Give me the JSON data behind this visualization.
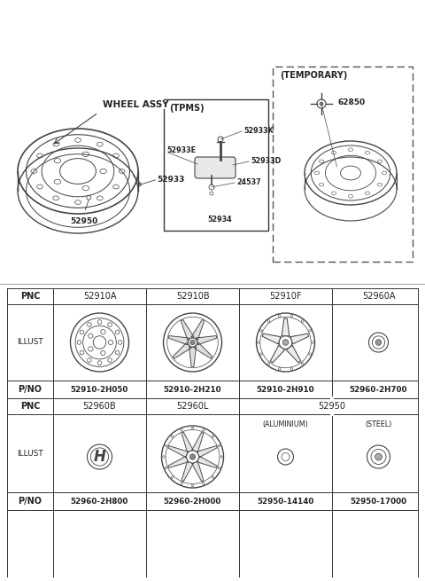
{
  "bg_color": "#ffffff",
  "line_color": "#444444",
  "text_color": "#222222",
  "diagram": {
    "wheel_assy_label": "WHEEL ASSY",
    "parts_left": [
      "52933",
      "52950"
    ],
    "tpms_label": "(TPMS)",
    "tpms_parts": [
      "52933K",
      "52933E",
      "52933D",
      "24537",
      "52934"
    ],
    "temp_label": "(TEMPORARY)",
    "temp_parts": [
      "62850"
    ]
  },
  "table": {
    "row0_headers": [
      "PNC",
      "52910A",
      "52910B",
      "52910F",
      "52960A"
    ],
    "row1_label": "ILLUST",
    "row2_label": "P/NO",
    "row2_values": [
      "52910-2H050",
      "52910-2H210",
      "52910-2H910",
      "52960-2H700"
    ],
    "row3_headers": [
      "PNC",
      "52960B",
      "52960L",
      "52950"
    ],
    "row4_label": "ILLUST",
    "row4_sub": [
      "",
      "",
      "(ALUMINIUM)",
      "(STEEL)"
    ],
    "row5_label": "P/NO",
    "row5_values": [
      "52960-2H800",
      "52960-2H000",
      "52950-14140",
      "52950-17000"
    ]
  }
}
